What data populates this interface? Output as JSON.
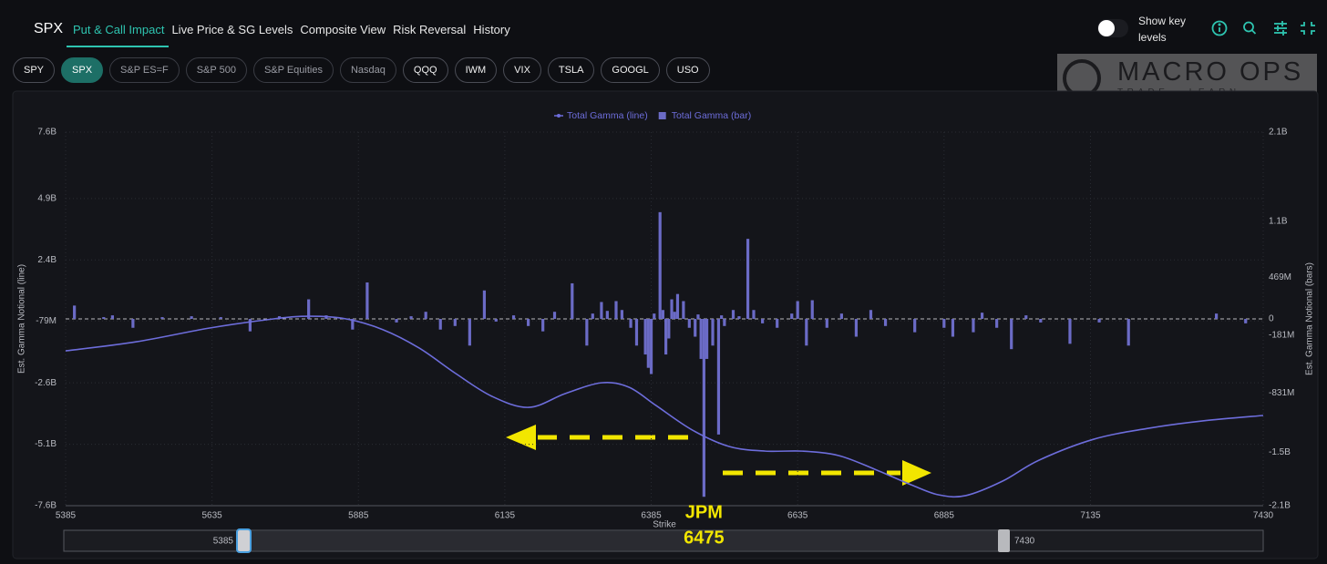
{
  "nav": {
    "symbol": "SPX",
    "tabs": [
      "Put & Call Impact",
      "Live Price & SG Levels",
      "Composite View",
      "Risk Reversal",
      "History"
    ],
    "active_tab": 0,
    "toggle_label": "Show key levels"
  },
  "tickers": [
    "SPY",
    "SPX",
    "S&P ES=F",
    "S&P 500",
    "S&P Equities",
    "Nasdaq",
    "QQQ",
    "IWM",
    "VIX",
    "TSLA",
    "GOOGL",
    "USO"
  ],
  "active_ticker": 1,
  "dimmed_tickers": [
    2,
    3,
    4,
    5
  ],
  "logo": {
    "name": "MACRO OPS",
    "tagline": "TRADE · LEARN · EVOLVE"
  },
  "chart_data": {
    "type": "bar_line",
    "xlabel": "Strike",
    "ylabel": "Est. Gamma Notional (line)",
    "y2label": "Est. Gamma Notional (bars)",
    "xlim": [
      5385,
      7430
    ],
    "xticks": [
      5385,
      5635,
      5885,
      6135,
      6385,
      6635,
      6885,
      7135,
      7430
    ],
    "ylim": [
      -7.6,
      7.6
    ],
    "yticks": [
      {
        "value": 7.6,
        "label": "7.6B"
      },
      {
        "value": 4.9,
        "label": "4.9B"
      },
      {
        "value": 2.4,
        "label": "2.4B"
      },
      {
        "value": -0.079,
        "label": "-79M"
      },
      {
        "value": -2.6,
        "label": "-2.6B"
      },
      {
        "value": -5.1,
        "label": "-5.1B"
      },
      {
        "value": -7.6,
        "label": "-7.6B"
      }
    ],
    "y2lim": [
      -2.1,
      2.1
    ],
    "y2ticks": [
      {
        "value": 2.1,
        "label": "2.1B"
      },
      {
        "value": 1.1,
        "label": "1.1B"
      },
      {
        "value": 0.469,
        "label": "469M"
      },
      0,
      {
        "value": -0.181,
        "label": "-181M"
      },
      {
        "value": -0.831,
        "label": "-831M"
      },
      {
        "value": -1.5,
        "label": "-1.5B"
      },
      {
        "value": -2.1,
        "label": "-2.1B"
      }
    ],
    "grid": true,
    "legend": "top",
    "annotation": {
      "label": "JPM",
      "x": 6475
    },
    "series": [
      {
        "name": "Total Gamma (line)",
        "type": "line",
        "color": "#6d6ddb",
        "x": [
          5385,
          5506,
          5631,
          5740,
          5802,
          5864,
          5927,
          5989,
          6051,
          6113,
          6176,
          6238,
          6300,
          6347,
          6393,
          6455,
          6518,
          6580,
          6643,
          6705,
          6767,
          6829,
          6876,
          6922,
          6985,
          7047,
          7140,
          7234,
          7327,
          7430
        ],
        "values": [
          -1.3,
          -0.93,
          -0.37,
          0,
          0.11,
          0,
          -0.44,
          -1.19,
          -2.22,
          -3.15,
          -3.6,
          -3.04,
          -2.6,
          -2.78,
          -3.52,
          -4.52,
          -5.19,
          -5.38,
          -5.38,
          -5.56,
          -6.12,
          -6.75,
          -7.16,
          -7.19,
          -6.6,
          -5.75,
          -4.9,
          -4.45,
          -4.15,
          -3.93
        ]
      },
      {
        "name": "Total Gamma (bar)",
        "type": "bar",
        "axis": "y2",
        "color": "#6b6bc6",
        "x": [
          5400,
          5450,
          5465,
          5500,
          5550,
          5600,
          5650,
          5700,
          5750,
          5800,
          5830,
          5875,
          5900,
          5950,
          5975,
          6000,
          6025,
          6050,
          6075,
          6100,
          6120,
          6150,
          6175,
          6200,
          6220,
          6250,
          6275,
          6285,
          6300,
          6310,
          6325,
          6335,
          6350,
          6360,
          6375,
          6380,
          6385,
          6390,
          6400,
          6405,
          6410,
          6415,
          6420,
          6425,
          6430,
          6440,
          6450,
          6460,
          6465,
          6470,
          6475,
          6480,
          6490,
          6500,
          6505,
          6510,
          6525,
          6535,
          6550,
          6560,
          6575,
          6600,
          6625,
          6635,
          6650,
          6660,
          6685,
          6710,
          6735,
          6760,
          6785,
          6835,
          6885,
          6900,
          6935,
          6950,
          6975,
          7000,
          7025,
          7050,
          7100,
          7150,
          7200,
          7350,
          7400
        ],
        "values": [
          0.15,
          0.02,
          0.04,
          -0.1,
          0.02,
          0.03,
          0.02,
          -0.14,
          0.03,
          0.22,
          0.04,
          -0.12,
          0.41,
          -0.04,
          0.03,
          0.08,
          -0.12,
          -0.08,
          -0.3,
          0.32,
          -0.03,
          0.04,
          -0.08,
          -0.14,
          0.08,
          0.4,
          -0.3,
          0.06,
          0.19,
          0.09,
          0.2,
          0.1,
          -0.1,
          -0.3,
          -0.4,
          -0.55,
          -0.62,
          0.06,
          1.2,
          0.1,
          -0.4,
          -0.22,
          0.22,
          0.08,
          0.28,
          0.2,
          -0.1,
          -0.2,
          0.05,
          -0.45,
          -2.0,
          -0.45,
          -0.3,
          -1.3,
          0.04,
          -0.08,
          0.1,
          0.03,
          0.9,
          0.1,
          -0.05,
          -0.1,
          0.06,
          0.2,
          -0.3,
          0.21,
          -0.1,
          0.06,
          -0.2,
          0.1,
          -0.08,
          -0.15,
          -0.1,
          -0.2,
          -0.15,
          0.07,
          -0.1,
          -0.34,
          0.04,
          -0.04,
          -0.28,
          -0.04,
          -0.3,
          0.06,
          -0.05
        ]
      }
    ]
  }
}
